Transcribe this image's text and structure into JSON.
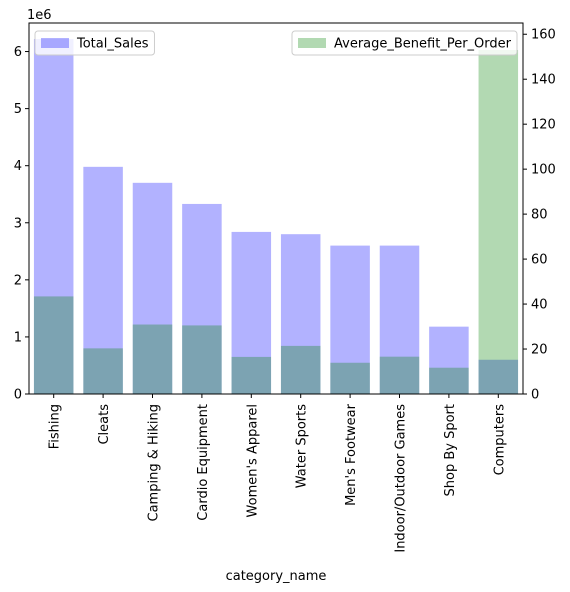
{
  "chart_data": {
    "type": "bar",
    "categories": [
      "Fishing",
      "Cleats",
      "Camping & Hiking",
      "Cardio Equipment",
      "Women's Apparel",
      "Water Sports",
      "Men's Footwear",
      "Indoor/Outdoor Games",
      "Shop By Sport",
      "Computers"
    ],
    "xlabel": "category_name",
    "left_axis": {
      "scale_label": "1e6",
      "ylim": [
        0,
        6.5
      ],
      "ticks": [
        0,
        1,
        2,
        3,
        4,
        5,
        6
      ],
      "tick_labels": [
        "0",
        "1",
        "2",
        "3",
        "4",
        "5",
        "6"
      ]
    },
    "right_axis": {
      "ylim": [
        0,
        165
      ],
      "ticks": [
        0,
        20,
        40,
        60,
        80,
        100,
        120,
        140,
        160
      ],
      "tick_labels": [
        "0",
        "20",
        "40",
        "60",
        "80",
        "100",
        "120",
        "140",
        "160"
      ]
    },
    "series": [
      {
        "name": "Total_Sales",
        "axis": "left",
        "color": "#0000ff",
        "alpha": 0.3,
        "values": [
          6.22,
          3.98,
          3.7,
          3.33,
          2.84,
          2.8,
          2.6,
          2.6,
          1.18,
          0.6
        ],
        "legend_position": "upper-left"
      },
      {
        "name": "Average_Benefit_Per_Order",
        "axis": "right",
        "color": "#008000",
        "alpha": 0.3,
        "values": [
          43.4,
          20.3,
          30.9,
          30.5,
          16.5,
          21.4,
          13.9,
          16.6,
          11.7,
          153.0
        ],
        "legend_position": "upper-right"
      }
    ]
  }
}
